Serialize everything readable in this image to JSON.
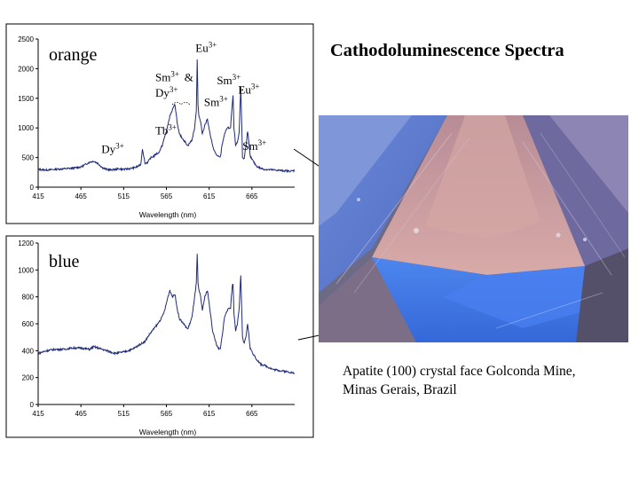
{
  "slide": {
    "title": "Cathodoluminescence Spectra",
    "caption_line1": "Apatite (100) crystal face Golconda Mine,",
    "caption_line2": "Minas Gerais, Brazil"
  },
  "photo": {
    "subject": "apatite crystal face under cathodoluminescence",
    "colors": {
      "pink": "#c89a9c",
      "blue": "#3d6ee0",
      "dark": "#4a3d58"
    }
  },
  "chart_data": [
    {
      "type": "line",
      "panel_label": "orange",
      "xlabel": "Wavelength (nm)",
      "ylabel": "",
      "xlim": [
        415,
        715
      ],
      "ylim": [
        0,
        2500
      ],
      "xticks": [
        415,
        465,
        515,
        565,
        615,
        665
      ],
      "yticks": [
        0,
        500,
        1000,
        1500,
        2000,
        2500
      ],
      "line_color": "#1f2a7a",
      "series": [
        {
          "name": "orange",
          "x": [
            415,
            425,
            435,
            445,
            455,
            465,
            470,
            475,
            480,
            485,
            490,
            495,
            500,
            505,
            510,
            515,
            520,
            525,
            530,
            535,
            537,
            540,
            543,
            547,
            550,
            553,
            556,
            560,
            563,
            566,
            569,
            572,
            575,
            578,
            580,
            585,
            590,
            595,
            598,
            600,
            601,
            602,
            603,
            605,
            607,
            610,
            613,
            616,
            619,
            622,
            625,
            628,
            630,
            633,
            636,
            640,
            642,
            643,
            644,
            646,
            648,
            650,
            652,
            653,
            654,
            656,
            658,
            660,
            663,
            666,
            670,
            675,
            680,
            690,
            700,
            710,
            715
          ],
          "y": [
            300,
            290,
            300,
            310,
            320,
            340,
            380,
            420,
            440,
            400,
            330,
            300,
            290,
            300,
            310,
            300,
            310,
            320,
            340,
            380,
            650,
            400,
            420,
            500,
            520,
            560,
            580,
            700,
            850,
            1000,
            1200,
            1300,
            1400,
            1050,
            900,
            800,
            700,
            800,
            1000,
            1300,
            2150,
            1400,
            1200,
            1100,
            900,
            1050,
            1150,
            900,
            700,
            580,
            520,
            500,
            700,
            900,
            1000,
            1000,
            1400,
            1550,
            1000,
            700,
            750,
            900,
            1700,
            1100,
            500,
            480,
            700,
            950,
            520,
            450,
            360,
            320,
            300,
            290,
            280,
            270,
            280
          ]
        }
      ],
      "annotations": [
        {
          "text": "Dy",
          "sup": "3+",
          "x": 489,
          "y": 580
        },
        {
          "text": "Tb",
          "sup": "3+",
          "x": 552,
          "y": 890
        },
        {
          "text": "Sm",
          "sup": "3+",
          "x": 552,
          "y": 1790
        },
        {
          "text": "&",
          "sup": "",
          "x": 586,
          "y": 1790
        },
        {
          "text": "Dy",
          "sup": "3+",
          "x": 552,
          "y": 1530
        },
        {
          "text": "Eu",
          "sup": "3+",
          "x": 599,
          "y": 2280
        },
        {
          "text": "Sm",
          "sup": "3+",
          "x": 624,
          "y": 1740
        },
        {
          "text": "Sm",
          "sup": "3+",
          "x": 609,
          "y": 1370
        },
        {
          "text": "Eu",
          "sup": "3+",
          "x": 649,
          "y": 1580
        },
        {
          "text": "Sm",
          "sup": "3+",
          "x": 654,
          "y": 630
        }
      ]
    },
    {
      "type": "line",
      "panel_label": "blue",
      "xlabel": "Wavelength (nm)",
      "ylabel": "",
      "xlim": [
        415,
        715
      ],
      "ylim": [
        0,
        1200
      ],
      "xticks": [
        415,
        465,
        515,
        565,
        615,
        665
      ],
      "yticks": [
        0,
        200,
        400,
        600,
        800,
        1000,
        1200
      ],
      "line_color": "#1f2a7a",
      "series": [
        {
          "name": "blue",
          "x": [
            415,
            425,
            435,
            445,
            455,
            465,
            475,
            480,
            485,
            495,
            505,
            515,
            525,
            530,
            535,
            540,
            545,
            550,
            555,
            560,
            563,
            566,
            569,
            572,
            575,
            578,
            580,
            585,
            590,
            595,
            598,
            600,
            601,
            602,
            603,
            605,
            607,
            610,
            613,
            616,
            619,
            622,
            625,
            628,
            630,
            633,
            636,
            640,
            642,
            643,
            644,
            646,
            648,
            650,
            652,
            653,
            654,
            656,
            658,
            660,
            663,
            666,
            670,
            675,
            680,
            690,
            700,
            710,
            715
          ],
          "y": [
            380,
            400,
            410,
            410,
            420,
            420,
            410,
            430,
            420,
            400,
            380,
            390,
            410,
            430,
            450,
            470,
            520,
            560,
            600,
            650,
            700,
            780,
            850,
            800,
            820,
            700,
            640,
            600,
            560,
            650,
            800,
            900,
            1120,
            900,
            850,
            800,
            700,
            800,
            850,
            700,
            550,
            480,
            420,
            410,
            500,
            650,
            700,
            720,
            880,
            900,
            680,
            550,
            600,
            700,
            960,
            720,
            500,
            450,
            500,
            600,
            420,
            380,
            340,
            300,
            290,
            260,
            250,
            240,
            230
          ]
        }
      ],
      "annotations": []
    }
  ]
}
